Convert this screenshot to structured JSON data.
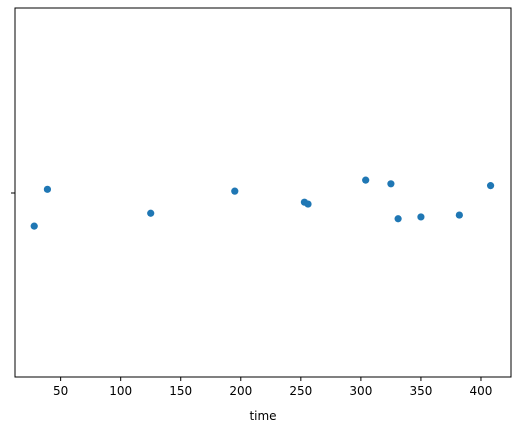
{
  "chart_data": {
    "type": "scatter",
    "title": "",
    "xlabel": "time",
    "ylabel": "",
    "xlim": [
      12,
      425
    ],
    "x_ticks": [
      50,
      100,
      150,
      200,
      250,
      300,
      350,
      400
    ],
    "y_ticks": [
      ""
    ],
    "grid": false,
    "legend": "none",
    "point_color": "#1f77b4",
    "points": [
      {
        "x": 28,
        "jitter": -0.18
      },
      {
        "x": 39,
        "jitter": 0.02
      },
      {
        "x": 125,
        "jitter": -0.11
      },
      {
        "x": 195,
        "jitter": 0.01
      },
      {
        "x": 253,
        "jitter": -0.05
      },
      {
        "x": 256,
        "jitter": -0.06
      },
      {
        "x": 304,
        "jitter": 0.07
      },
      {
        "x": 325,
        "jitter": 0.05
      },
      {
        "x": 331,
        "jitter": -0.14
      },
      {
        "x": 350,
        "jitter": -0.13
      },
      {
        "x": 382,
        "jitter": -0.12
      },
      {
        "x": 408,
        "jitter": 0.04
      }
    ]
  }
}
